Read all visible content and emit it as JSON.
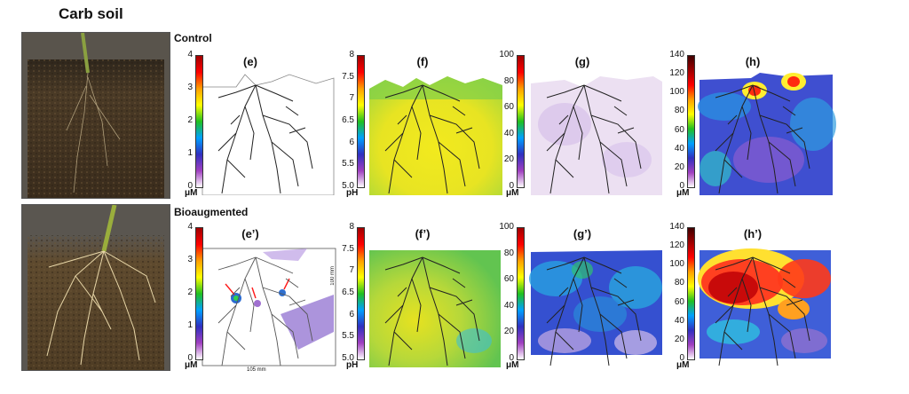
{
  "figure": {
    "title": "Carb soil",
    "rows": [
      {
        "label": "Control",
        "panels": [
          {
            "id": "e",
            "label": "(e)",
            "unit": "μM",
            "ticks": [
              "4",
              "3",
              "2",
              "1",
              "0"
            ],
            "colors": [
              "#a00000",
              "#ff0000",
              "#ffa000",
              "#ffff00",
              "#20c020",
              "#00a0ff",
              "#3030c0",
              "#a040c0",
              "#ffffff"
            ]
          },
          {
            "id": "f",
            "label": "(f)",
            "unit": "pH",
            "ticks": [
              "8",
              "7.5",
              "7",
              "6.5",
              "6",
              "5.5",
              "5.0"
            ],
            "colors": [
              "#a00000",
              "#ff0000",
              "#ffa000",
              "#ffff00",
              "#20c020",
              "#00a0ff",
              "#3030c0",
              "#a040c0",
              "#ffffff"
            ]
          },
          {
            "id": "g",
            "label": "(g)",
            "unit": "μM",
            "ticks": [
              "100",
              "80",
              "60",
              "40",
              "20",
              "0"
            ],
            "colors": [
              "#a00000",
              "#ff0000",
              "#ffa000",
              "#ffff00",
              "#20c020",
              "#00a0ff",
              "#3030c0",
              "#a040c0",
              "#ffffff"
            ]
          },
          {
            "id": "h",
            "label": "(h)",
            "unit": "μM",
            "ticks": [
              "140",
              "120",
              "100",
              "80",
              "60",
              "40",
              "20",
              "0"
            ],
            "colors": [
              "#400000",
              "#a00000",
              "#ff0000",
              "#ffa000",
              "#ffff00",
              "#20c020",
              "#00a0ff",
              "#3030c0",
              "#a040c0",
              "#ffffff"
            ]
          }
        ]
      },
      {
        "label": "Bioaugmented",
        "panels": [
          {
            "id": "e2",
            "label": "(e’)",
            "unit": "μM",
            "ticks": [
              "4",
              "3",
              "2",
              "1",
              "0"
            ],
            "colors": [
              "#a00000",
              "#ff0000",
              "#ffa000",
              "#ffff00",
              "#20c020",
              "#00a0ff",
              "#3030c0",
              "#a040c0",
              "#ffffff"
            ]
          },
          {
            "id": "f2",
            "label": "(f’)",
            "unit": "pH",
            "ticks": [
              "8",
              "7.5",
              "7",
              "6.5",
              "6",
              "5.5",
              "5.0"
            ],
            "colors": [
              "#a00000",
              "#ff0000",
              "#ffa000",
              "#ffff00",
              "#20c020",
              "#00a0ff",
              "#3030c0",
              "#a040c0",
              "#ffffff"
            ]
          },
          {
            "id": "g2",
            "label": "(g’)",
            "unit": "μM",
            "ticks": [
              "100",
              "80",
              "60",
              "40",
              "20",
              "0"
            ],
            "colors": [
              "#a00000",
              "#ff0000",
              "#ffa000",
              "#ffff00",
              "#20c020",
              "#00a0ff",
              "#3030c0",
              "#a040c0",
              "#ffffff"
            ]
          },
          {
            "id": "h2",
            "label": "(h’)",
            "unit": "μM",
            "ticks": [
              "140",
              "120",
              "100",
              "80",
              "60",
              "40",
              "20",
              "0"
            ],
            "colors": [
              "#400000",
              "#a00000",
              "#ff0000",
              "#ffa000",
              "#ffff00",
              "#20c020",
              "#00a0ff",
              "#3030c0",
              "#a040c0",
              "#ffffff"
            ]
          }
        ]
      }
    ],
    "scale": {
      "width_label": "105 mm",
      "height_label": "100 mm"
    }
  }
}
